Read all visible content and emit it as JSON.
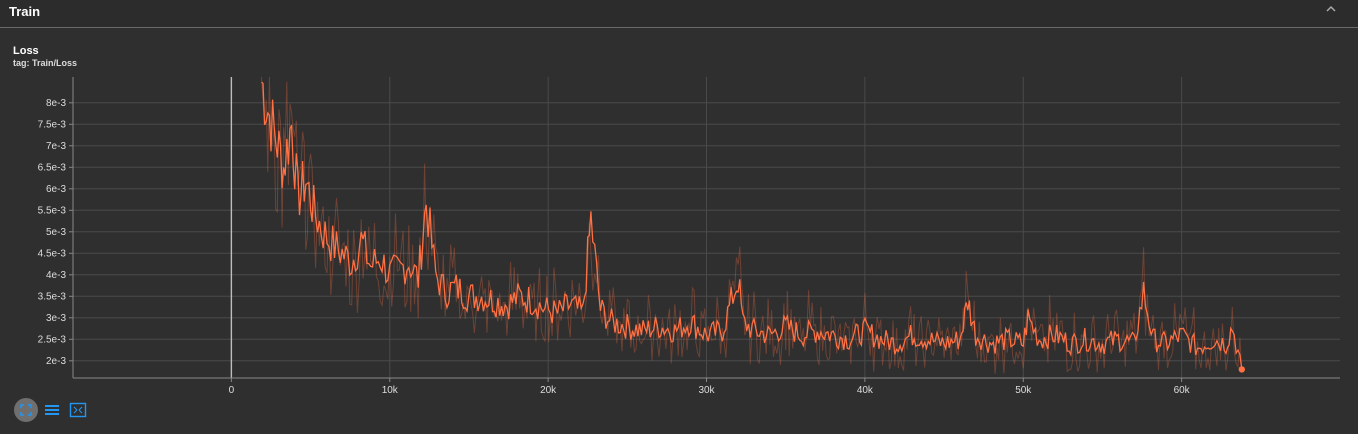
{
  "header": {
    "title": "Train",
    "collapse_icon": "chevron-up-icon"
  },
  "chart": {
    "title": "Loss",
    "tag": "tag: Train/Loss"
  },
  "toolbar": {
    "icons": [
      "fit-domain-icon",
      "list-icon",
      "expand-icon"
    ],
    "active_color": "#2196f3"
  },
  "chart_data": {
    "type": "line",
    "title": "Loss",
    "xlabel": "",
    "ylabel": "",
    "xlim": [
      -10000,
      70000
    ],
    "ylim": [
      0.0016,
      0.0086
    ],
    "x_ticks": [
      "0",
      "10k",
      "20k",
      "30k",
      "40k",
      "50k",
      "60k"
    ],
    "x_tick_values": [
      0,
      10000,
      20000,
      30000,
      40000,
      50000,
      60000
    ],
    "y_ticks": [
      "8e-3",
      "7.5e-3",
      "7e-3",
      "6.5e-3",
      "6e-3",
      "5.5e-3",
      "5e-3",
      "4.5e-3",
      "4e-3",
      "3.5e-3",
      "3e-3",
      "2.5e-3",
      "2e-3"
    ],
    "y_tick_values": [
      0.008,
      0.0075,
      0.007,
      0.0065,
      0.006,
      0.0055,
      0.005,
      0.0045,
      0.004,
      0.0035,
      0.003,
      0.0025,
      0.002
    ],
    "grid": true,
    "series": [
      {
        "color": "#ff7043",
        "x": [
          1900,
          2400,
          2800,
          3300,
          3800,
          4200,
          4700,
          5200,
          5800,
          6400,
          7000,
          7600,
          8200,
          8800,
          9400,
          10000,
          10600,
          11200,
          11800,
          12300,
          12900,
          13500,
          14200,
          15000,
          15800,
          16600,
          17400,
          18200,
          19000,
          19800,
          20600,
          21400,
          22200,
          22700,
          23300,
          24000,
          25000,
          26000,
          27000,
          28000,
          29000,
          30000,
          31000,
          32000,
          32300,
          33000,
          34000,
          35000,
          36000,
          37000,
          38000,
          39000,
          40000,
          41000,
          42000,
          43000,
          44000,
          45000,
          46000,
          46500,
          47000,
          48000,
          49000,
          50000,
          50300,
          51000,
          52000,
          53000,
          54000,
          55000,
          56000,
          57000,
          57600,
          58200,
          59000,
          60000,
          61000,
          62000,
          62800,
          63200,
          63800
        ],
        "y": [
          0.0085,
          0.0077,
          0.0072,
          0.0065,
          0.0075,
          0.0058,
          0.0062,
          0.0055,
          0.005,
          0.0047,
          0.0045,
          0.0043,
          0.0048,
          0.0042,
          0.0044,
          0.004,
          0.0041,
          0.0043,
          0.0039,
          0.0057,
          0.004,
          0.0036,
          0.0037,
          0.0035,
          0.0035,
          0.0034,
          0.0033,
          0.0035,
          0.0034,
          0.0032,
          0.0031,
          0.0033,
          0.0031,
          0.0053,
          0.0032,
          0.0029,
          0.0028,
          0.0027,
          0.0028,
          0.0027,
          0.0029,
          0.0026,
          0.0027,
          0.0039,
          0.0029,
          0.0027,
          0.0026,
          0.0028,
          0.0026,
          0.0027,
          0.0026,
          0.0025,
          0.0027,
          0.0025,
          0.0024,
          0.0026,
          0.0025,
          0.0024,
          0.0025,
          0.0034,
          0.0026,
          0.0024,
          0.0025,
          0.0024,
          0.003,
          0.0025,
          0.0026,
          0.0024,
          0.0025,
          0.0024,
          0.0025,
          0.0024,
          0.0036,
          0.0025,
          0.0024,
          0.0026,
          0.0023,
          0.0025,
          0.0024,
          0.0028,
          0.0018
        ]
      }
    ]
  }
}
